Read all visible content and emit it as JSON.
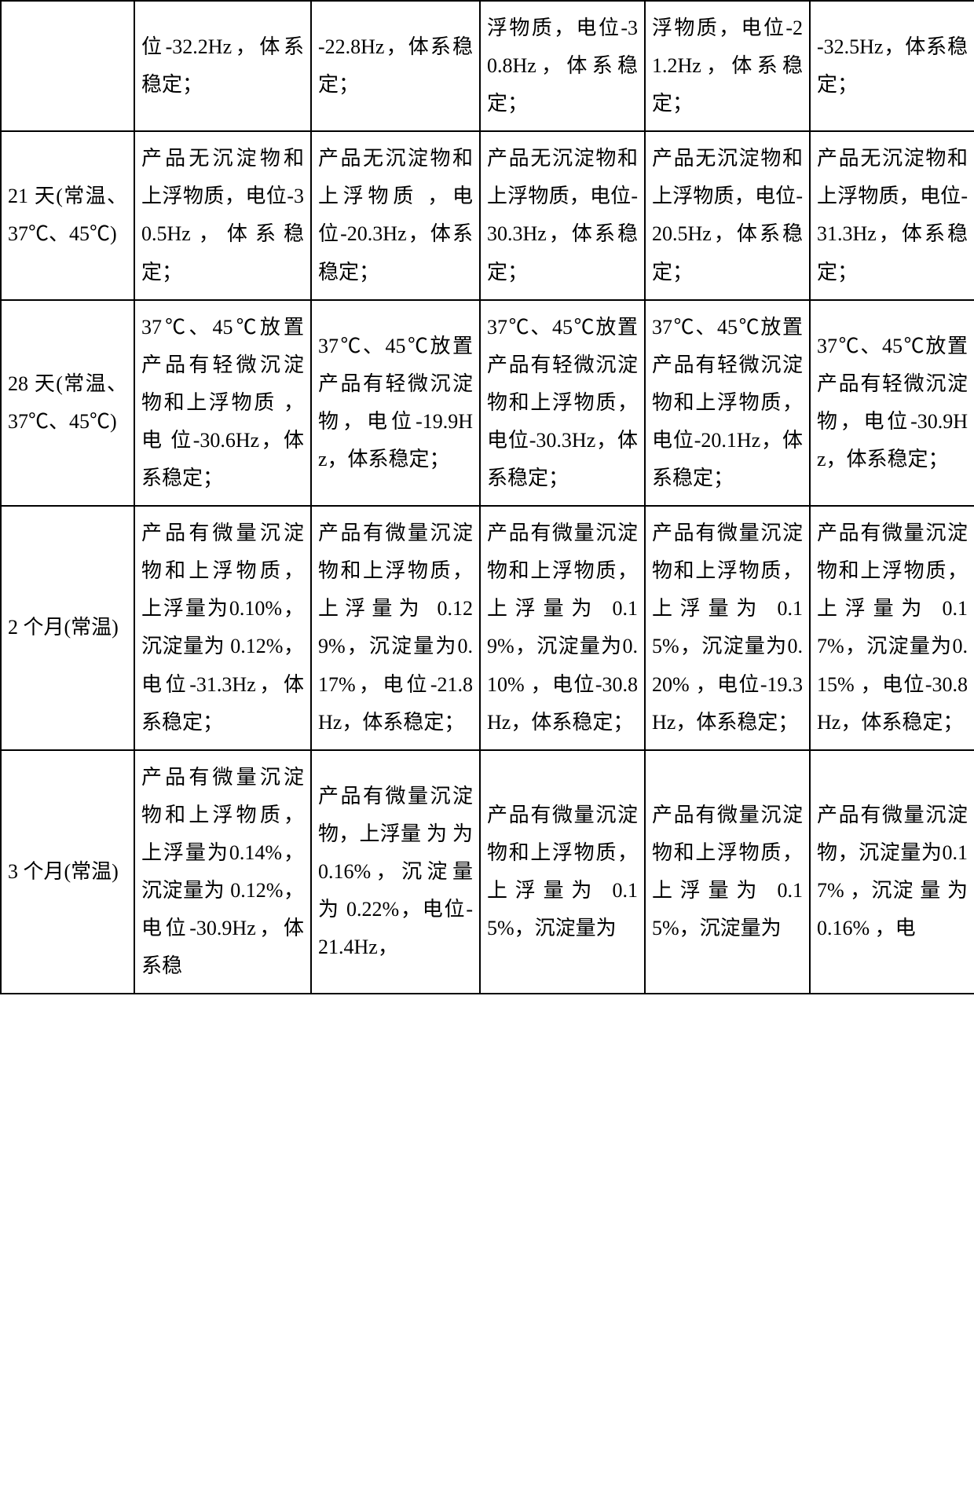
{
  "table": {
    "rows": [
      {
        "label": "",
        "c1": "位-32.2Hz，体系稳定；",
        "c2": "-22.8Hz，体系稳定；",
        "c3": "浮物质，电位-30.8Hz，体系稳定；",
        "c4": "浮物质，电位-21.2Hz，体系稳定；",
        "c5": "-32.5Hz，体系稳定；"
      },
      {
        "label": "21 天(常温、37℃、45℃)",
        "c1": "产品无沉淀物和上浮物质，电位-30.5Hz，体系稳定；",
        "c2": "产品无沉淀物和上浮物质 ，电 位-20.3Hz，体系稳定；",
        "c3": "产品无沉淀物和上浮物质，电位-30.3Hz，体系稳定；",
        "c4": "产品无沉淀物和上浮物质，电位-20.5Hz，体系稳定；",
        "c5": "产品无沉淀物和上浮物质，电位-31.3Hz，体系稳定；"
      },
      {
        "label": "28 天(常温、37℃、45℃)",
        "c1": "37℃、45℃放置产品有轻微沉淀物和上浮物质 ，电 位-30.6Hz，体系稳定；",
        "c2": "37℃、45℃放置产品有轻微沉淀物，电位-19.9Hz，体系稳定；",
        "c3": "37℃、45℃放置产品有轻微沉淀物和上浮物质，电位-30.3Hz，体系稳定；",
        "c4": "37℃、45℃放置产品有轻微沉淀物和上浮物质，电位-20.1Hz，体系稳定；",
        "c5": "37℃、45℃放置产品有轻微沉淀物，电位-30.9Hz，体系稳定；"
      },
      {
        "label": "2 个月(常温)",
        "c1": "产品有微量沉淀物和上浮物质，上浮量为0.10%，沉淀量为 0.12%，电位-31.3Hz，体系稳定；",
        "c2": "产品有微量沉淀物和上浮物质，上浮量为 0.129%，沉淀量为0.17%，电位-21.8Hz，体系稳定；",
        "c3": "产品有微量沉淀物和上浮物质，上浮量为 0.19%，沉淀量为0.10% ，电位-30.8Hz，体系稳定；",
        "c4": "产品有微量沉淀物和上浮物质，上浮量为 0.15%，沉淀量为0.20% ，电位-19.3Hz，体系稳定；",
        "c5": "产品有微量沉淀物和上浮物质，上浮量为 0.17%，沉淀量为0.15% ，电位-30.8Hz，体系稳定；"
      },
      {
        "label": "3 个月(常温)",
        "c1": "产品有微量沉淀物和上浮物质，上浮量为0.14%，沉淀量为 0.12%，电位-30.9Hz，体系稳",
        "c2": "产品有微量沉淀物，上浮量 为 为0.16%，沉淀量为 0.22%，电位-21.4Hz，",
        "c3": "产品有微量沉淀物和上浮物质，上浮量为 0.15%，沉淀量为",
        "c4": "产品有微量沉淀物和上浮物质，上浮量为 0.15%，沉淀量为",
        "c5": "产品有微量沉淀物，沉淀量为0.17% ，沉淀 量 为0.16% ，电"
      }
    ]
  }
}
